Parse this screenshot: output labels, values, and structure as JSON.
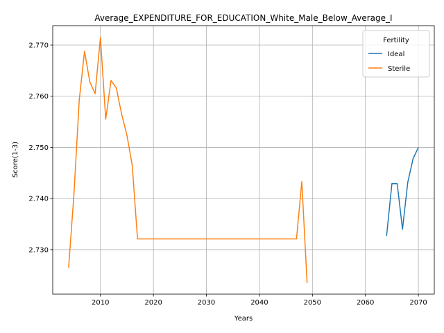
{
  "chart_data": {
    "type": "line",
    "title": "Average_EXPENDITURE_FOR_EDUCATION_White_Male_Below_Average_I",
    "xlabel": "Years",
    "ylabel": "Score(1-3)",
    "xlim": [
      2001,
      2073
    ],
    "ylim": [
      2.7213,
      2.7738
    ],
    "xticks": [
      2010,
      2020,
      2030,
      2040,
      2050,
      2060,
      2070
    ],
    "yticks": [
      2.73,
      2.74,
      2.75,
      2.76,
      2.77
    ],
    "xtick_labels": [
      "2010",
      "2020",
      "2030",
      "2040",
      "2050",
      "2060",
      "2070"
    ],
    "ytick_labels": [
      "2.730",
      "2.740",
      "2.750",
      "2.760",
      "2.770"
    ],
    "grid": true,
    "legend": {
      "title": "Fertility",
      "position": "top-right"
    },
    "series": [
      {
        "name": "Ideal",
        "color": "#1f77b4",
        "x": [
          2064,
          2065,
          2066,
          2067,
          2068,
          2069,
          2070
        ],
        "y": [
          2.7327,
          2.7429,
          2.7429,
          2.734,
          2.7432,
          2.7478,
          2.75
        ]
      },
      {
        "name": "Sterile",
        "color": "#ff7f0e",
        "x": [
          2004,
          2005,
          2006,
          2007,
          2008,
          2009,
          2010,
          2011,
          2012,
          2013,
          2014,
          2015,
          2016,
          2017,
          2018,
          2019,
          2020,
          2021,
          2022,
          2023,
          2024,
          2025,
          2026,
          2027,
          2028,
          2029,
          2030,
          2031,
          2032,
          2033,
          2034,
          2035,
          2036,
          2037,
          2038,
          2039,
          2040,
          2041,
          2042,
          2043,
          2044,
          2045,
          2046,
          2047,
          2048,
          2049
        ],
        "y": [
          2.7265,
          2.7408,
          2.7592,
          2.7688,
          2.7628,
          2.7605,
          2.7715,
          2.7555,
          2.7631,
          2.7616,
          2.7565,
          2.7524,
          2.7465,
          2.7321,
          2.7321,
          2.7321,
          2.7321,
          2.7321,
          2.7321,
          2.7321,
          2.7321,
          2.7321,
          2.7321,
          2.7321,
          2.7321,
          2.7321,
          2.7321,
          2.7321,
          2.7321,
          2.7321,
          2.7321,
          2.7321,
          2.7321,
          2.7321,
          2.7321,
          2.7321,
          2.7321,
          2.7321,
          2.7321,
          2.7321,
          2.7321,
          2.7321,
          2.7321,
          2.7321,
          2.7433,
          2.7235
        ]
      }
    ]
  }
}
